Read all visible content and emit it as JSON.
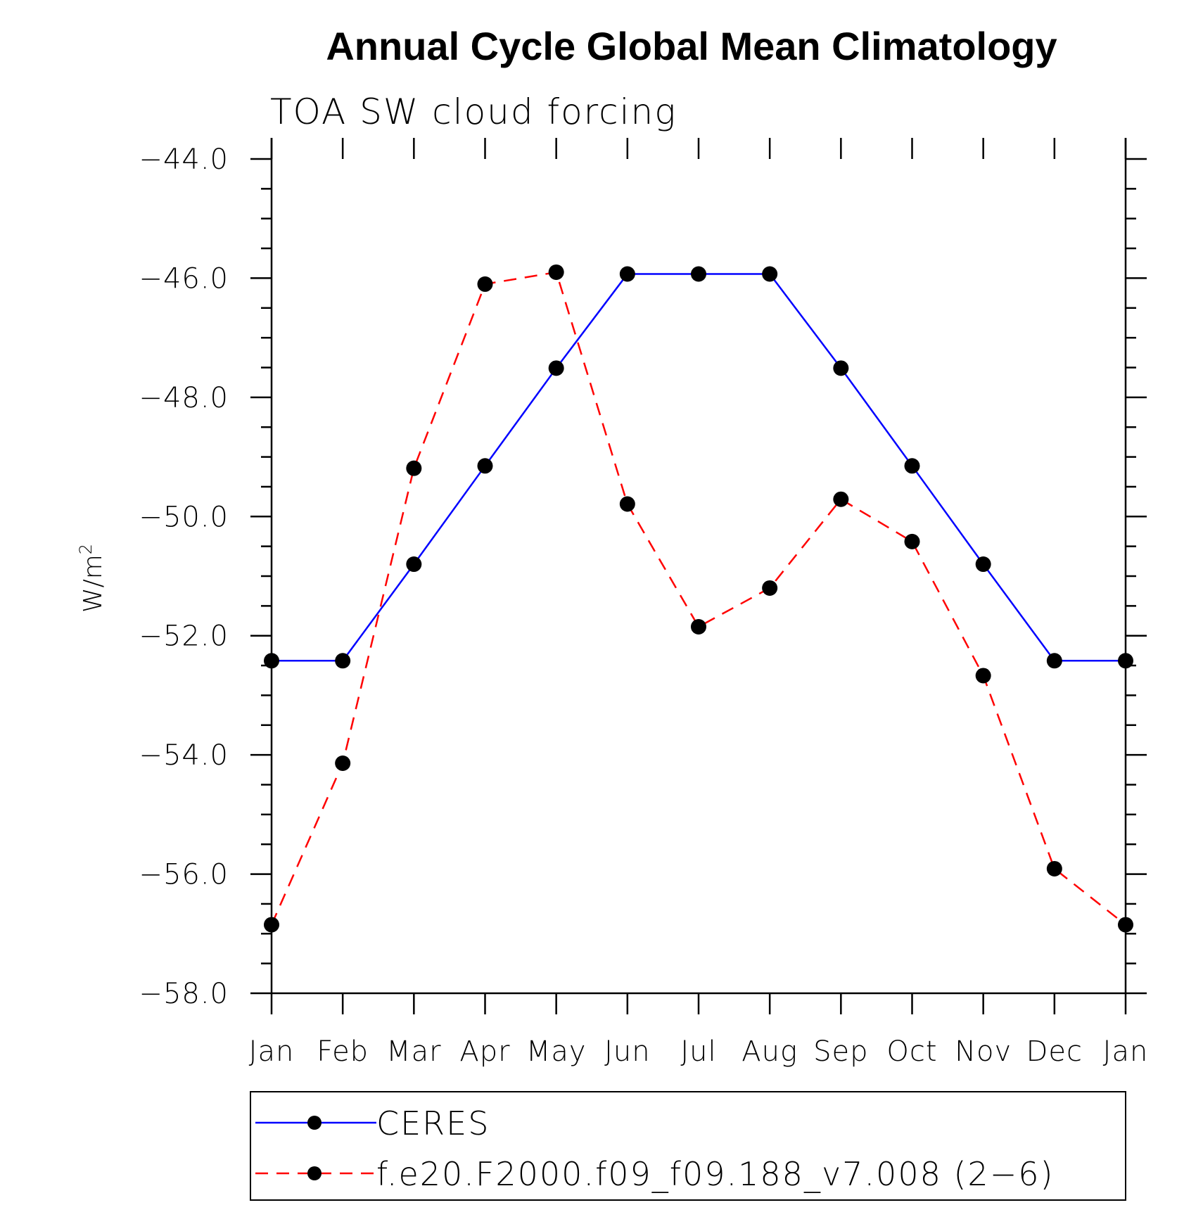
{
  "chart_data": {
    "type": "line",
    "title": "Annual Cycle Global Mean Climatology",
    "subtitle": "TOA SW cloud forcing",
    "ylabel": "W/m",
    "ylabel_superscript": "2",
    "xlabel": "",
    "categories": [
      "Jan",
      "Feb",
      "Mar",
      "Apr",
      "May",
      "Jun",
      "Jul",
      "Aug",
      "Sep",
      "Oct",
      "Nov",
      "Dec",
      "Jan"
    ],
    "ylim": [
      -58.0,
      -44.0
    ],
    "yticks": [
      "-44.0",
      "-46.0",
      "-48.0",
      "-50.0",
      "-52.0",
      "-54.0",
      "-56.0",
      "-58.0"
    ],
    "grid": false,
    "legend_position": "bottom",
    "series": [
      {
        "name": "CERES",
        "color": "#0000ff",
        "style": "solid",
        "marker": "circle",
        "values": [
          -52.42,
          -52.42,
          -50.8,
          -49.15,
          -47.51,
          -45.93,
          -45.93,
          -45.93,
          -47.51,
          -49.15,
          -50.8,
          -52.42,
          -52.42
        ]
      },
      {
        "name": "f.e20.F2000.f09_f09.188_v7.008 (2−6)",
        "color": "#ff0000",
        "style": "dashed",
        "marker": "circle",
        "values": [
          -56.85,
          -54.14,
          -49.19,
          -46.1,
          -45.9,
          -49.79,
          -51.85,
          -51.2,
          -49.71,
          -50.42,
          -52.67,
          -55.91,
          -56.85
        ]
      }
    ]
  }
}
